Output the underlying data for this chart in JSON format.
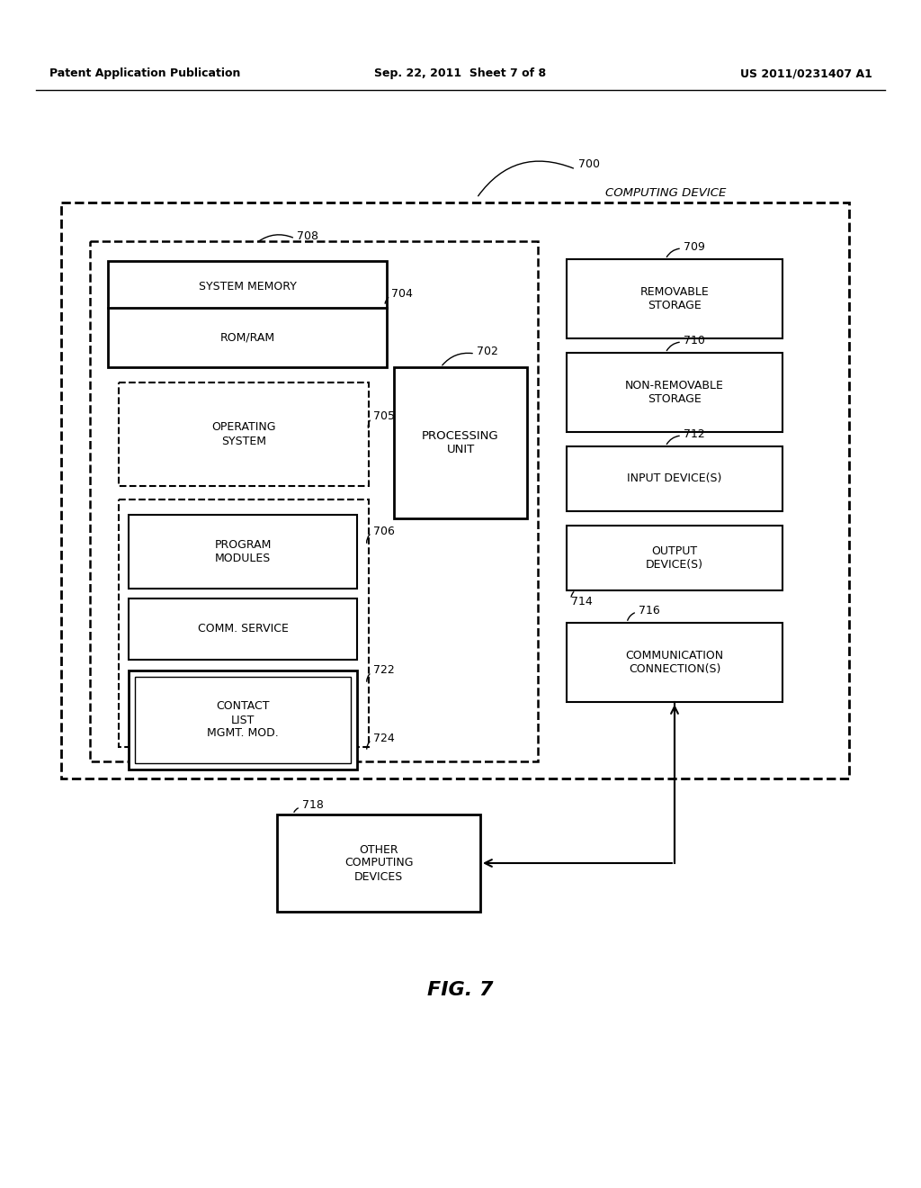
{
  "bg_color": "#ffffff",
  "header_left": "Patent Application Publication",
  "header_center": "Sep. 22, 2011  Sheet 7 of 8",
  "header_right": "US 2011/0231407 A1",
  "figure_label": "FIG. 7",
  "computing_device_label": "COMPUTING DEVICE",
  "r700": "700",
  "r702": "702",
  "r704": "704",
  "r705": "705",
  "r706": "706",
  "r708": "708",
  "r709": "709",
  "r710": "710",
  "r712": "712",
  "r714": "714",
  "r716": "716",
  "r718": "718",
  "r722": "722",
  "r724": "724"
}
